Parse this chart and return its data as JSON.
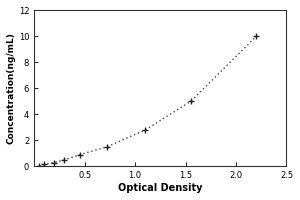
{
  "xlabel": "Optical Density",
  "ylabel": "Concentration(ng/mL)",
  "xlim": [
    0,
    2.5
  ],
  "ylim": [
    0,
    12
  ],
  "xticks": [
    0,
    0.5,
    1.0,
    1.5,
    2.0,
    2.5
  ],
  "yticks": [
    0,
    2,
    4,
    6,
    8,
    10,
    12
  ],
  "x_data": [
    0.05,
    0.1,
    0.2,
    0.3,
    0.45,
    0.72,
    1.1,
    1.55,
    2.2
  ],
  "y_data": [
    0.05,
    0.15,
    0.3,
    0.5,
    0.9,
    1.5,
    2.8,
    5.0,
    10.0
  ],
  "line_color": "#444444",
  "marker_color": "#222222",
  "background_color": "#ffffff",
  "axes_bg": "#ffffff",
  "linewidth": 1.0,
  "markersize": 5,
  "xlabel_fontsize": 7,
  "ylabel_fontsize": 6.5,
  "tick_fontsize": 6
}
